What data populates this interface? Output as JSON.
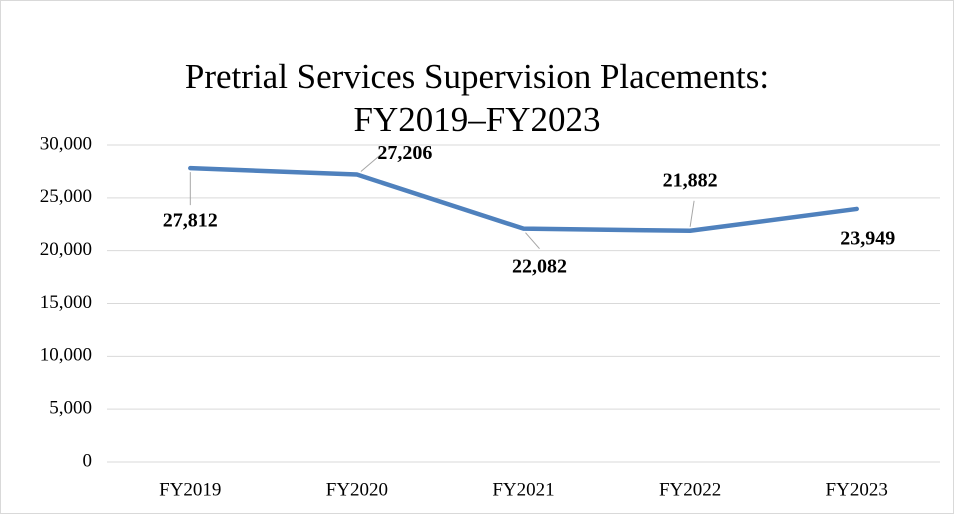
{
  "chart_data": {
    "type": "line",
    "title": [
      "Pretrial Services Supervision Placements:",
      "FY2019–FY2023"
    ],
    "categories": [
      "FY2019",
      "FY2020",
      "FY2021",
      "FY2022",
      "FY2023"
    ],
    "values": [
      27812,
      27206,
      22082,
      21882,
      23949
    ],
    "value_labels": [
      "27,812",
      "27,206",
      "22,082",
      "21,882",
      "23,949"
    ],
    "color": "#4f81bd",
    "ylim": [
      0,
      30000
    ],
    "yticks": [
      0,
      {
        "value": 5000,
        "label": "5,000"
      },
      {
        "value": 10000,
        "label": "10,000"
      },
      {
        "value": 15000,
        "label": "15,000"
      },
      {
        "value": 20000,
        "label": "20,000"
      },
      {
        "value": 25000,
        "label": "25,000"
      },
      {
        "value": 30000,
        "label": "30,000"
      }
    ],
    "grid": true
  }
}
